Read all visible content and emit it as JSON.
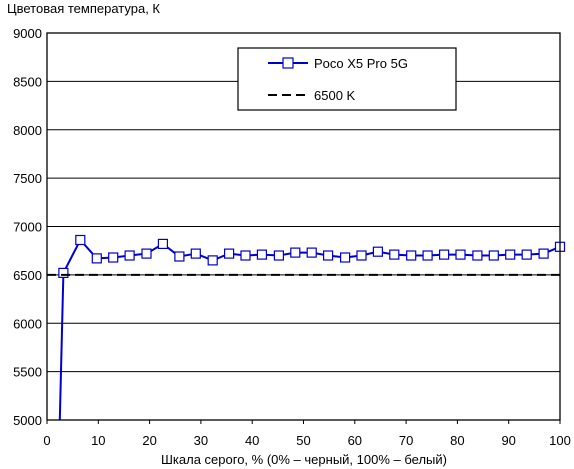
{
  "chart_data": {
    "type": "line",
    "title": "Цветовая температура, К",
    "xlabel": "Шкала серого, % (0% – черный, 100% – белый)",
    "ylabel": "",
    "xlim": [
      0,
      100
    ],
    "ylim": [
      5000,
      9000
    ],
    "x_ticks": [
      "0",
      "10",
      "20",
      "30",
      "40",
      "50",
      "60",
      "70",
      "80",
      "90",
      "100"
    ],
    "y_ticks": [
      "5000",
      "5500",
      "6000",
      "6500",
      "7000",
      "7500",
      "8000",
      "8500",
      "9000"
    ],
    "grid": "horizontal",
    "legend_position": "top-right",
    "series": [
      {
        "name": "Poco X5 Pro 5G",
        "color": "#0000cc",
        "marker": "square",
        "x": [
          2.5,
          3.2,
          6.5,
          9.7,
          12.9,
          16.1,
          19.4,
          22.6,
          25.8,
          29.0,
          32.3,
          35.5,
          38.7,
          41.9,
          45.2,
          48.4,
          51.6,
          54.8,
          58.1,
          61.3,
          64.5,
          67.7,
          71.0,
          74.2,
          77.4,
          80.6,
          83.9,
          87.1,
          90.3,
          93.5,
          96.8,
          100
        ],
        "values": [
          5000,
          6520,
          6860,
          6670,
          6680,
          6700,
          6720,
          6820,
          6690,
          6720,
          6650,
          6720,
          6700,
          6710,
          6700,
          6730,
          6730,
          6700,
          6680,
          6700,
          6740,
          6710,
          6700,
          6700,
          6710,
          6710,
          6700,
          6700,
          6710,
          6710,
          6720,
          6790
        ],
        "marker_from_index": 1
      },
      {
        "name": "6500 K",
        "color": "#000000",
        "style": "dashed",
        "x": [
          0,
          100
        ],
        "values": [
          6500,
          6500
        ]
      }
    ]
  }
}
